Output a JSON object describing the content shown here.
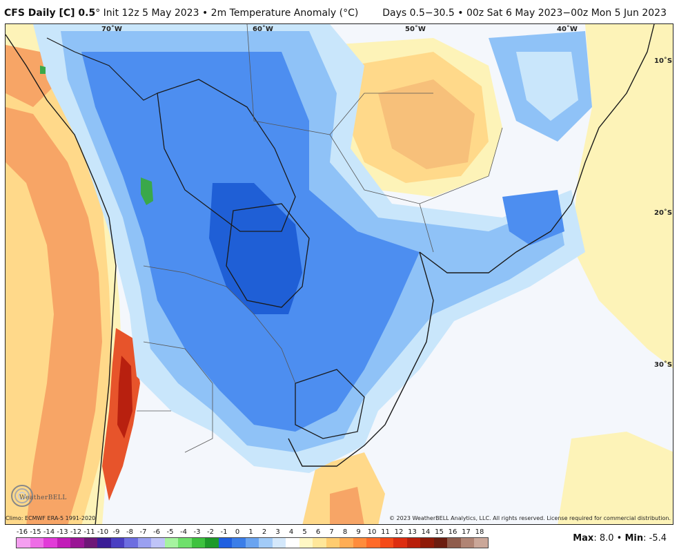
{
  "header": {
    "product": "CFS Daily [C] 0.5",
    "degree": "°",
    "init": "Init 12z 5 May 2023",
    "bullet": "•",
    "field": "2m Temperature Anomaly (°C)",
    "range": "Days 0.5−30.5 • 00z Sat 6 May 2023−00z Mon 5 Jun 2023"
  },
  "map": {
    "lon_labels": [
      "70˚W",
      "60˚W",
      "50˚W",
      "40˚W"
    ],
    "lat_labels": [
      "10˚S",
      "20˚S",
      "30˚S"
    ]
  },
  "footer": {
    "climo": "Climo: ECMWF ERA-5 1991-2020",
    "copyright": "© 2023 WeatherBELL Analytics, LLC. All rights reserved. License required for commercial distribution.",
    "logo_text": "WeatherBELL",
    "max_label": "Max",
    "max_value": ": 8.0",
    "sep": "•",
    "min_label": "Min",
    "min_value": ": -5.4"
  },
  "legend": {
    "ticks": [
      "-16",
      "-15",
      "-14",
      "-13",
      "-12",
      "-11",
      "-10",
      "-9",
      "-8",
      "-7",
      "-6",
      "-5",
      "-4",
      "-3",
      "-2",
      "-1",
      "0",
      "1",
      "2",
      "3",
      "4",
      "5",
      "6",
      "7",
      "8",
      "9",
      "10",
      "11",
      "12",
      "13",
      "14",
      "15",
      "16",
      "17",
      "18"
    ],
    "colors": [
      "#f59ff0",
      "#ee6de6",
      "#e23bd8",
      "#c21cb8",
      "#9a1595",
      "#6e1777",
      "#3a1d96",
      "#4a3fc2",
      "#6d6ee0",
      "#9aa0f0",
      "#bfc4f8",
      "#a6f3a0",
      "#6fe06c",
      "#3ec23f",
      "#1e9a2a",
      "#2060e0",
      "#3b7ee8",
      "#6aa4f0",
      "#a2cbf7",
      "#d4e8fb",
      "#ffffff",
      "#fff7c4",
      "#ffe79a",
      "#ffcc70",
      "#ffad55",
      "#ff8c3c",
      "#ff6a28",
      "#f44a18",
      "#dd2d10",
      "#b81e0a",
      "#8f1a08",
      "#6b1d10",
      "#8f5c4c",
      "#b08474",
      "#caa799",
      "#e3cbc2",
      "#f7e6e6",
      "#f5c4c8",
      "#f29aa6",
      "#ea6b7e",
      "#d9405a",
      "#b52436"
    ]
  },
  "colors": {
    "land_border": "#1a1a1a",
    "cold_deep": "#1f5fd6",
    "cold_mid": "#4d8ef0",
    "cold_light": "#8fc2f7",
    "cold_pale": "#c9e6fb",
    "warm_pale": "#fdf3b8",
    "warm_light": "#ffd98a",
    "warm_mid": "#f7a566",
    "warm_hot": "#e7542b",
    "warm_deep": "#b8200f",
    "green": "#3aa84a"
  }
}
